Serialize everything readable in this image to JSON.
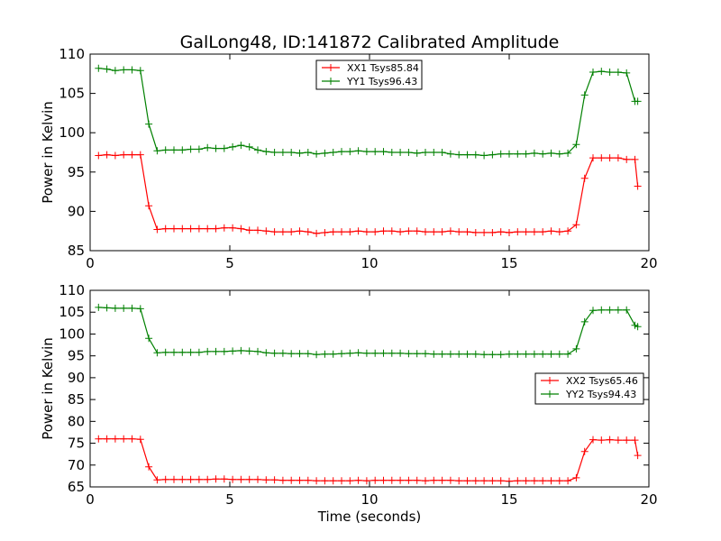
{
  "colors": {
    "xx": "#ff0000",
    "yy": "#008000",
    "axes": "#000000",
    "background": "#ffffff"
  },
  "chart_data": [
    {
      "type": "line",
      "title": "GalLong48, ID:141872 Calibrated Amplitude",
      "xlabel": "",
      "ylabel": "Power in Kelvin",
      "xlim": [
        0,
        20
      ],
      "ylim": [
        85,
        110
      ],
      "xticks": [
        0,
        5,
        10,
        15,
        20
      ],
      "yticks": [
        85,
        90,
        95,
        100,
        105,
        110
      ],
      "grid": false,
      "legend_position": "upper-center",
      "x": [
        0.3,
        0.6,
        0.9,
        1.2,
        1.5,
        1.8,
        2.1,
        2.4,
        2.7,
        3.0,
        3.3,
        3.6,
        3.9,
        4.2,
        4.5,
        4.8,
        5.1,
        5.4,
        5.7,
        6.0,
        6.3,
        6.6,
        6.9,
        7.2,
        7.5,
        7.8,
        8.1,
        8.4,
        8.7,
        9.0,
        9.3,
        9.6,
        9.9,
        10.2,
        10.5,
        10.8,
        11.1,
        11.4,
        11.7,
        12.0,
        12.3,
        12.6,
        12.9,
        13.2,
        13.5,
        13.8,
        14.1,
        14.4,
        14.7,
        15.0,
        15.3,
        15.6,
        15.9,
        16.2,
        16.5,
        16.8,
        17.1,
        17.4,
        17.7,
        18.0,
        18.3,
        18.6,
        18.9,
        19.2,
        19.5,
        19.6
      ],
      "series": [
        {
          "name": "XX1 Tsys85.84",
          "color": "#ff0000",
          "values": [
            97.1,
            97.2,
            97.1,
            97.2,
            97.2,
            97.2,
            90.7,
            87.7,
            87.8,
            87.8,
            87.8,
            87.8,
            87.8,
            87.8,
            87.8,
            87.9,
            87.9,
            87.8,
            87.6,
            87.6,
            87.5,
            87.4,
            87.4,
            87.4,
            87.5,
            87.4,
            87.2,
            87.3,
            87.4,
            87.4,
            87.4,
            87.5,
            87.4,
            87.4,
            87.5,
            87.5,
            87.4,
            87.5,
            87.5,
            87.4,
            87.4,
            87.4,
            87.5,
            87.4,
            87.4,
            87.3,
            87.3,
            87.3,
            87.4,
            87.3,
            87.4,
            87.4,
            87.4,
            87.4,
            87.5,
            87.4,
            87.5,
            88.3,
            94.2,
            96.8,
            96.8,
            96.8,
            96.8,
            96.6,
            96.6,
            93.2
          ]
        },
        {
          "name": "YY1 Tsys96.43",
          "color": "#008000",
          "values": [
            108.2,
            108.1,
            107.9,
            108.0,
            108.0,
            107.9,
            101.1,
            97.7,
            97.8,
            97.8,
            97.8,
            97.9,
            97.9,
            98.1,
            98.0,
            98.0,
            98.2,
            98.4,
            98.2,
            97.8,
            97.6,
            97.5,
            97.5,
            97.5,
            97.4,
            97.5,
            97.3,
            97.4,
            97.5,
            97.6,
            97.6,
            97.7,
            97.6,
            97.6,
            97.6,
            97.5,
            97.5,
            97.5,
            97.4,
            97.5,
            97.5,
            97.5,
            97.3,
            97.2,
            97.2,
            97.2,
            97.1,
            97.2,
            97.3,
            97.3,
            97.3,
            97.3,
            97.4,
            97.3,
            97.4,
            97.3,
            97.4,
            98.5,
            104.8,
            107.7,
            107.8,
            107.7,
            107.7,
            107.6,
            104.0,
            104.0
          ]
        }
      ]
    },
    {
      "type": "line",
      "title": "",
      "xlabel": "Time (seconds)",
      "ylabel": "Power in Kelvin",
      "xlim": [
        0,
        20
      ],
      "ylim": [
        65,
        110
      ],
      "xticks": [
        0,
        5,
        10,
        15,
        20
      ],
      "yticks": [
        65,
        70,
        75,
        80,
        85,
        90,
        95,
        100,
        105,
        110
      ],
      "grid": false,
      "legend_position": "center-right",
      "x": [
        0.3,
        0.6,
        0.9,
        1.2,
        1.5,
        1.8,
        2.1,
        2.4,
        2.7,
        3.0,
        3.3,
        3.6,
        3.9,
        4.2,
        4.5,
        4.8,
        5.1,
        5.4,
        5.7,
        6.0,
        6.3,
        6.6,
        6.9,
        7.2,
        7.5,
        7.8,
        8.1,
        8.4,
        8.7,
        9.0,
        9.3,
        9.6,
        9.9,
        10.2,
        10.5,
        10.8,
        11.1,
        11.4,
        11.7,
        12.0,
        12.3,
        12.6,
        12.9,
        13.2,
        13.5,
        13.8,
        14.1,
        14.4,
        14.7,
        15.0,
        15.3,
        15.6,
        15.9,
        16.2,
        16.5,
        16.8,
        17.1,
        17.4,
        17.7,
        18.0,
        18.3,
        18.6,
        18.9,
        19.2,
        19.5,
        19.6
      ],
      "series": [
        {
          "name": "XX2 Tsys65.46",
          "color": "#ff0000",
          "values": [
            76.0,
            76.0,
            76.0,
            76.0,
            76.0,
            75.9,
            69.6,
            66.6,
            66.7,
            66.7,
            66.7,
            66.7,
            66.7,
            66.7,
            66.8,
            66.8,
            66.7,
            66.7,
            66.7,
            66.7,
            66.6,
            66.6,
            66.5,
            66.5,
            66.5,
            66.5,
            66.4,
            66.4,
            66.4,
            66.4,
            66.4,
            66.5,
            66.4,
            66.5,
            66.5,
            66.5,
            66.5,
            66.5,
            66.5,
            66.4,
            66.5,
            66.5,
            66.5,
            66.4,
            66.4,
            66.4,
            66.4,
            66.4,
            66.4,
            66.3,
            66.4,
            66.4,
            66.4,
            66.4,
            66.4,
            66.4,
            66.4,
            67.1,
            73.1,
            75.8,
            75.7,
            75.8,
            75.7,
            75.7,
            75.7,
            72.2
          ]
        },
        {
          "name": "YY2 Tsys94.43",
          "color": "#008000",
          "values": [
            106.1,
            106.0,
            105.9,
            105.9,
            105.9,
            105.8,
            99.0,
            95.7,
            95.8,
            95.8,
            95.8,
            95.8,
            95.8,
            96.0,
            96.0,
            96.0,
            96.1,
            96.2,
            96.1,
            96.0,
            95.7,
            95.6,
            95.6,
            95.5,
            95.5,
            95.5,
            95.3,
            95.4,
            95.4,
            95.5,
            95.6,
            95.7,
            95.6,
            95.6,
            95.6,
            95.6,
            95.6,
            95.5,
            95.5,
            95.5,
            95.4,
            95.4,
            95.4,
            95.4,
            95.4,
            95.4,
            95.3,
            95.3,
            95.3,
            95.4,
            95.4,
            95.4,
            95.4,
            95.4,
            95.4,
            95.4,
            95.4,
            96.6,
            102.8,
            105.4,
            105.5,
            105.5,
            105.5,
            105.5,
            102.0,
            101.7
          ]
        }
      ]
    }
  ]
}
